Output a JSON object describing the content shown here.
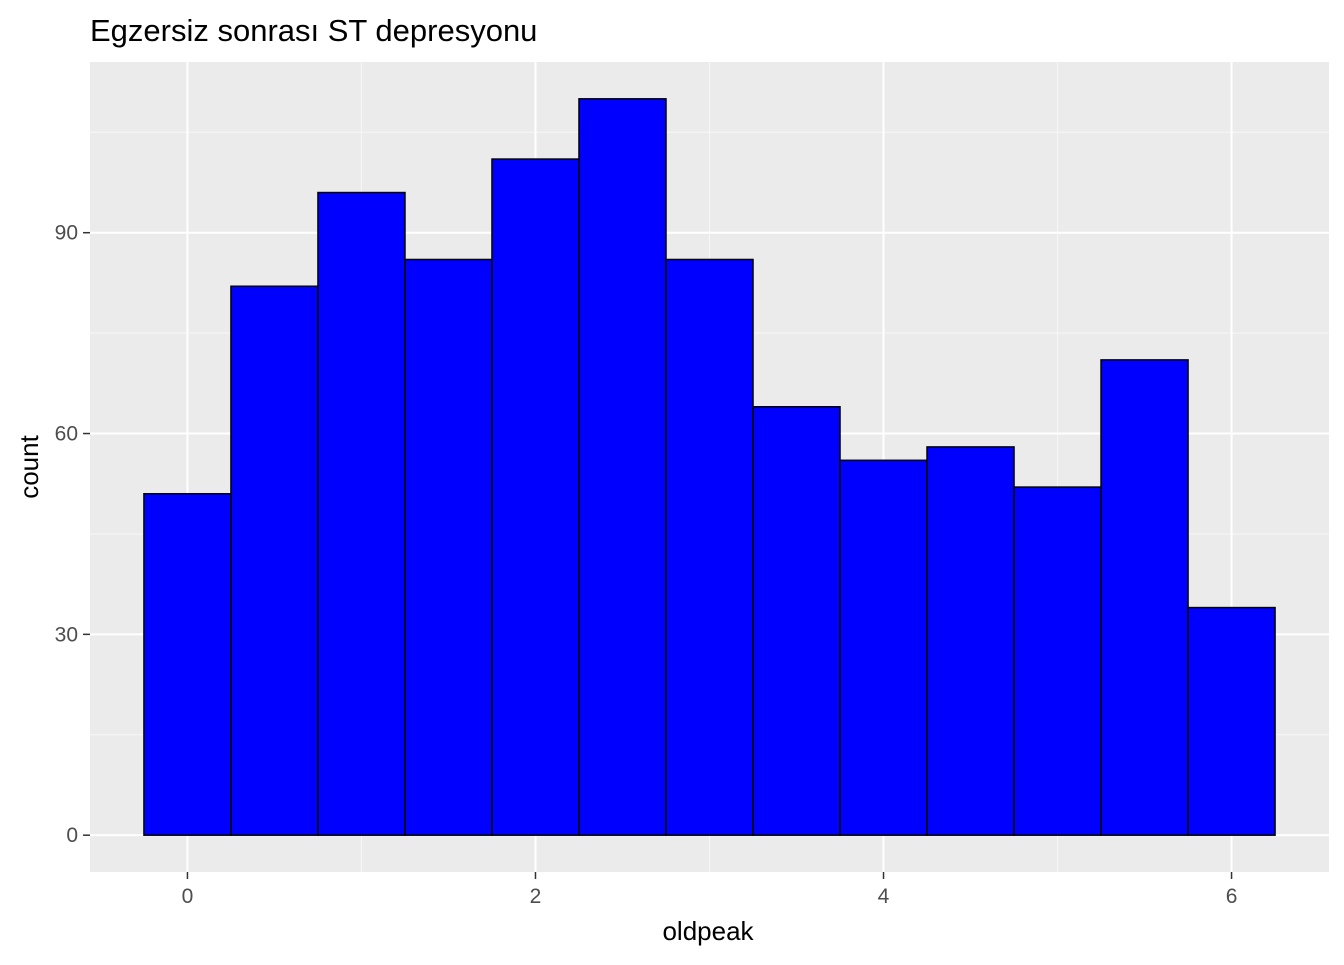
{
  "chart_data": {
    "type": "bar",
    "title": "Egzersiz sonrası ST depresyonu",
    "xlabel": "oldpeak",
    "ylabel": "count",
    "bin_width": 0.5,
    "bins": [
      {
        "x_min": -0.25,
        "x_max": 0.25,
        "count": 51
      },
      {
        "x_min": 0.25,
        "x_max": 0.75,
        "count": 82
      },
      {
        "x_min": 0.75,
        "x_max": 1.25,
        "count": 96
      },
      {
        "x_min": 1.25,
        "x_max": 1.75,
        "count": 86
      },
      {
        "x_min": 1.75,
        "x_max": 2.25,
        "count": 101
      },
      {
        "x_min": 2.25,
        "x_max": 2.75,
        "count": 110
      },
      {
        "x_min": 2.75,
        "x_max": 3.25,
        "count": 86
      },
      {
        "x_min": 3.25,
        "x_max": 3.75,
        "count": 64
      },
      {
        "x_min": 3.75,
        "x_max": 4.25,
        "count": 56
      },
      {
        "x_min": 4.25,
        "x_max": 4.75,
        "count": 58
      },
      {
        "x_min": 4.75,
        "x_max": 5.25,
        "count": 52
      },
      {
        "x_min": 5.25,
        "x_max": 5.75,
        "count": 71
      },
      {
        "x_min": 5.75,
        "x_max": 6.25,
        "count": 34
      }
    ],
    "xlim": [
      -0.56,
      6.56
    ],
    "ylim": [
      -5.5,
      115.5
    ],
    "x_ticks": [
      0,
      2,
      4,
      6
    ],
    "x_tick_labels": [
      "0",
      "2",
      "4",
      "6"
    ],
    "x_minor_ticks": [
      1,
      3,
      5
    ],
    "y_ticks": [
      0,
      30,
      60,
      90
    ],
    "y_tick_labels": [
      "0",
      "30",
      "60",
      "90"
    ],
    "y_minor_ticks": [
      15,
      45,
      75,
      105
    ],
    "grid": true,
    "colors": {
      "bar_fill": "#0000FF",
      "bar_outline": "#000000",
      "panel_background": "#EBEBEB",
      "grid_major": "#FFFFFF",
      "grid_minor": "#F7F7F7",
      "tick_mark": "#333333",
      "tick_text": "#4D4D4D"
    }
  }
}
